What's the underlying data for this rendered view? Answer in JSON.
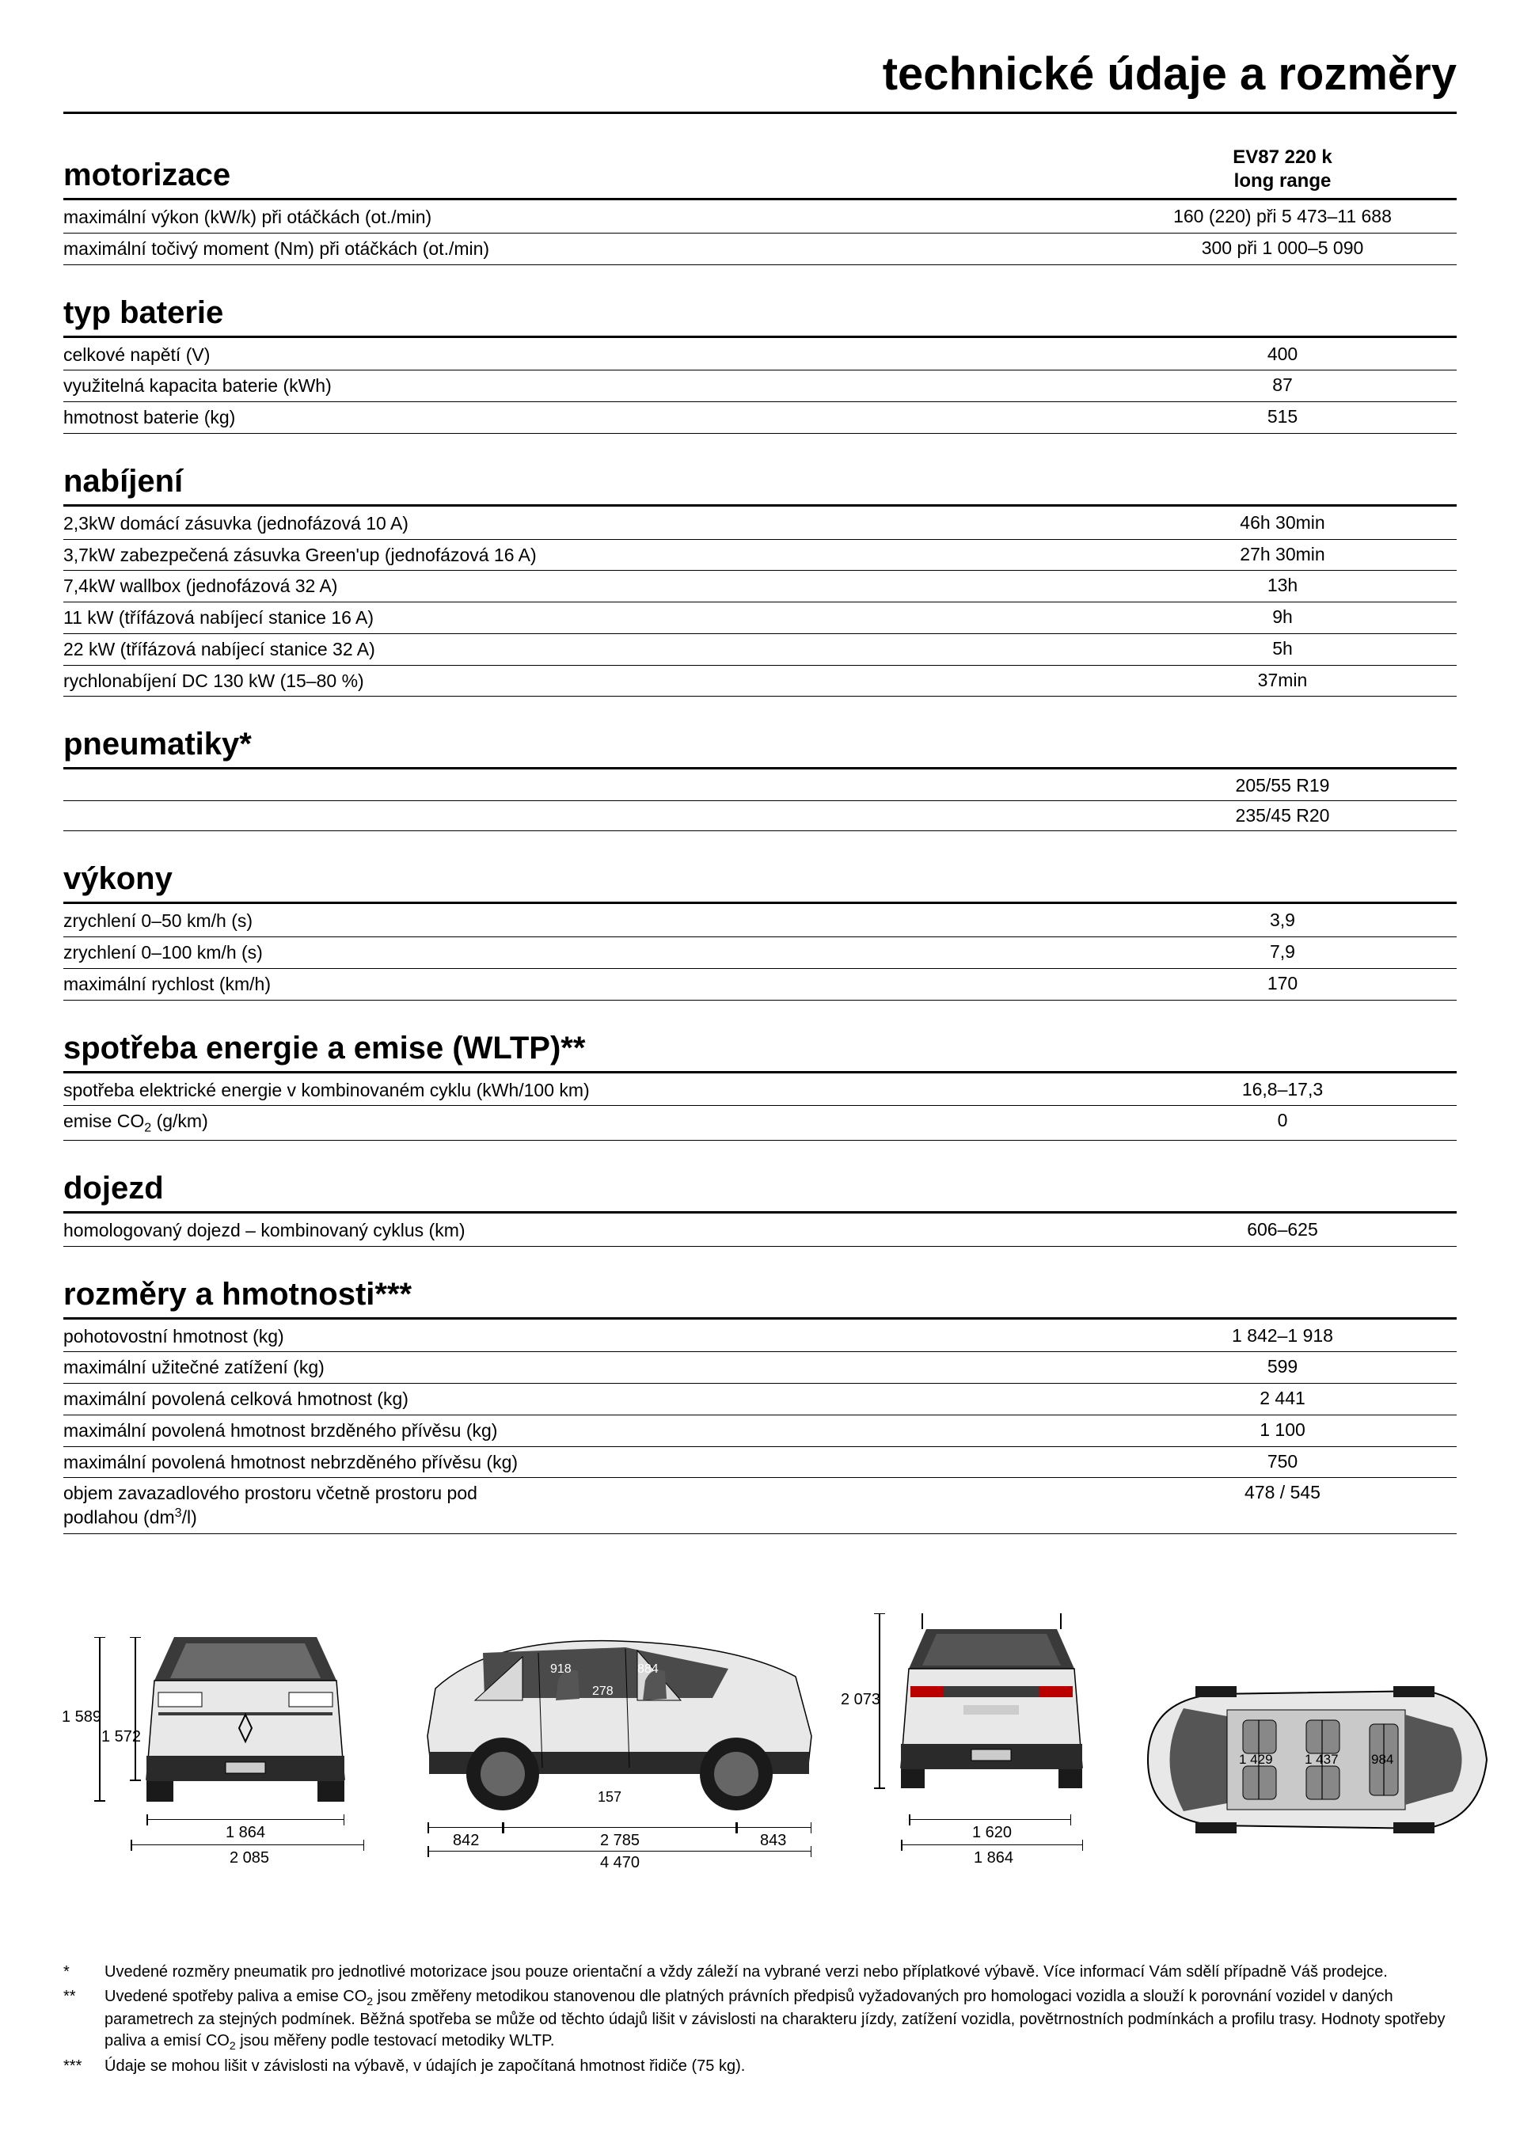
{
  "page_title": "technické údaje a rozměry",
  "variant_header": {
    "line1": "EV87 220 k",
    "line2": "long range"
  },
  "sections": {
    "motorizace": {
      "title": "motorizace",
      "rows": [
        {
          "label": "maximální výkon (kW/k) při otáčkách (ot./min)",
          "value": "160 (220) při 5 473–11 688"
        },
        {
          "label": "maximální točivý moment (Nm) při otáčkách (ot./min)",
          "value": "300 při 1 000–5 090"
        }
      ]
    },
    "typ_baterie": {
      "title": "typ baterie",
      "rows": [
        {
          "label": "celkové napětí (V)",
          "value": "400"
        },
        {
          "label": "využitelná kapacita baterie (kWh)",
          "value": "87"
        },
        {
          "label": "hmotnost baterie (kg)",
          "value": "515"
        }
      ]
    },
    "nabijeni": {
      "title": "nabíjení",
      "rows": [
        {
          "label": "2,3kW domácí zásuvka (jednofázová 10 A)",
          "value": "46h 30min"
        },
        {
          "label": "3,7kW zabezpečená zásuvka Green'up (jednofázová 16 A)",
          "value": "27h 30min"
        },
        {
          "label": "7,4kW wallbox (jednofázová 32 A)",
          "value": "13h"
        },
        {
          "label": "11 kW (třífázová nabíjecí stanice 16 A)",
          "value": "9h"
        },
        {
          "label": "22 kW (třífázová nabíjecí stanice 32 A)",
          "value": "5h"
        },
        {
          "label": "rychlonabíjení DC 130 kW (15–80 %)",
          "value": "37min"
        }
      ]
    },
    "pneumatiky": {
      "title": "pneumatiky*",
      "rows": [
        {
          "label": "",
          "value": "205/55 R19"
        },
        {
          "label": "",
          "value": "235/45 R20"
        }
      ]
    },
    "vykony": {
      "title": "výkony",
      "rows": [
        {
          "label": "zrychlení 0–50 km/h (s)",
          "value": "3,9"
        },
        {
          "label": "zrychlení 0–100 km/h (s)",
          "value": "7,9"
        },
        {
          "label": "maximální rychlost (km/h)",
          "value": "170"
        }
      ]
    },
    "spotreba": {
      "title": "spotřeba energie a emise (WLTP)**",
      "rows": [
        {
          "label": "spotřeba elektrické energie v kombinovaném cyklu (kWh/100 km)",
          "value": "16,8–17,3"
        },
        {
          "label_html": "emise CO<sub>2</sub> (g/km)",
          "value": "0"
        }
      ]
    },
    "dojezd": {
      "title": "dojezd",
      "rows": [
        {
          "label": "homologovaný dojezd – kombinovaný cyklus (km)",
          "value": "606–625"
        }
      ]
    },
    "rozmery": {
      "title": "rozměry a hmotnosti***",
      "rows": [
        {
          "label": "pohotovostní hmotnost (kg)",
          "value": "1 842–1 918"
        },
        {
          "label": "maximální užitečné zatížení (kg)",
          "value": "599"
        },
        {
          "label": "maximální povolená celková hmotnost (kg)",
          "value": "2 441"
        },
        {
          "label": "maximální povolená hmotnost brzděného přívěsu (kg)",
          "value": "1 100"
        },
        {
          "label": "maximální povolená hmotnost nebrzděného přívěsu (kg)",
          "value": "750"
        },
        {
          "label_html": "objem zavazadlového prostoru včetně prostoru pod<br>podlahou (dm<sup>3</sup>/l)",
          "value": "478 / 545"
        }
      ]
    }
  },
  "diagrams": {
    "front": {
      "height_outer": "1 589",
      "height_inner": "1 572",
      "width_inner": "1 864",
      "width_outer": "2 085"
    },
    "side": {
      "front_overhang": "842",
      "wheelbase": "2 785",
      "rear_overhang": "843",
      "total_length": "4 470",
      "ground_clearance": "157",
      "interior_h1": "918",
      "interior_h2": "884",
      "interior_w": "278"
    },
    "rear": {
      "height": "2 073",
      "track": "1 620",
      "width": "1 864"
    },
    "top": {
      "row1": "1 429",
      "row2": "1 437",
      "row3": "984"
    },
    "colors": {
      "body": "#e8e8e8",
      "body_dark": "#3a3a3a",
      "glass": "#4a4a4a",
      "wheel": "#1a1a1a",
      "line": "#000000"
    }
  },
  "footnotes": [
    {
      "mark": "*",
      "text": "Uvedené rozměry pneumatik pro jednotlivé motorizace jsou pouze orientační a vždy záleží na vybrané verzi nebo příplatkové výbavě. Více informací Vám sdělí případně Váš prodejce."
    },
    {
      "mark": "**",
      "text_html": "Uvedené spotřeby paliva a emise CO<sub>2</sub> jsou změřeny metodikou stanovenou dle platných právních předpisů vyžadovaných pro homologaci vozidla a slouží k porovnání vozidel v daných parametrech za stejných podmínek. Běžná spotřeba se může od těchto údajů lišit v závislosti na charakteru jízdy, zatížení vozidla, povětrnostních podmínkách a profilu trasy. Hodnoty spotřeby paliva a emisí CO<sub>2</sub> jsou měřeny podle testovací metodiky WLTP."
    },
    {
      "mark": "***",
      "text": "Údaje se mohou lišit v závislosti na výbavě, v údajích je započítaná hmotnost řidiče (75 kg)."
    }
  ]
}
